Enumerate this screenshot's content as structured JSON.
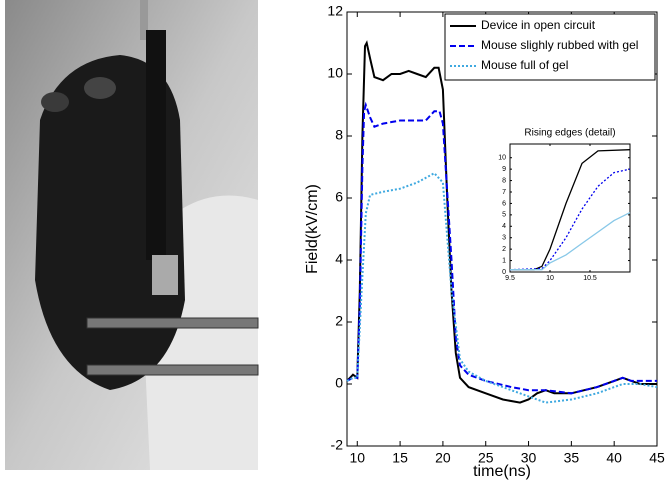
{
  "chart_data": [
    {
      "type": "line",
      "xlabel": "time(ns)",
      "ylabel": "Field(kV/cm)",
      "xlim": [
        8.8,
        45
      ],
      "xticks": [
        10,
        15,
        20,
        25,
        30,
        35,
        40,
        45
      ],
      "ylim": [
        -2,
        12
      ],
      "yticks": [
        -2,
        0,
        2,
        4,
        6,
        8,
        10,
        12
      ],
      "legend": "top-right",
      "series": [
        {
          "name": "Device in open circuit",
          "color": "#000000",
          "style": "solid",
          "x": [
            8.8,
            9.5,
            10,
            10.3,
            10.6,
            10.9,
            11.1,
            11.5,
            12,
            13,
            14,
            15,
            16,
            17,
            18,
            19,
            19.5,
            20,
            20.5,
            21,
            21.5,
            22,
            23,
            25,
            27,
            29,
            30,
            31,
            32,
            33,
            35,
            38,
            40,
            41,
            42,
            43,
            45
          ],
          "values": [
            0.1,
            0.3,
            0.2,
            3,
            8,
            10.9,
            11,
            10.5,
            9.9,
            9.8,
            10,
            10,
            10.1,
            10,
            9.9,
            10.2,
            10.2,
            9.5,
            6,
            3,
            1,
            0.2,
            -0.1,
            -0.3,
            -0.5,
            -0.6,
            -0.5,
            -0.3,
            -0.2,
            -0.3,
            -0.3,
            -0.1,
            0.1,
            0.2,
            0.1,
            0,
            0
          ]
        },
        {
          "name": "Mouse slighly rubbed with gel",
          "color": "#0000ee",
          "style": "dashed",
          "x": [
            8.8,
            9.5,
            10,
            10.3,
            10.6,
            10.8,
            11,
            11.5,
            12,
            13,
            15,
            18,
            19,
            19.6,
            20,
            21,
            21.5,
            22,
            23,
            25,
            28,
            30,
            32,
            35,
            38,
            41,
            42,
            45
          ],
          "values": [
            0.1,
            0.2,
            0.2,
            2.5,
            7,
            8.8,
            9,
            8.6,
            8.3,
            8.4,
            8.5,
            8.5,
            8.8,
            8.8,
            8.4,
            4,
            1.5,
            0.6,
            0.3,
            0.1,
            -0.1,
            -0.2,
            -0.2,
            -0.3,
            -0.1,
            0.2,
            0.1,
            0.1
          ]
        },
        {
          "name": "Mouse full of gel",
          "color": "#3fa9e0",
          "style": "dotted",
          "x": [
            8.8,
            9.5,
            10,
            10.5,
            11,
            11.5,
            13,
            15,
            17,
            19,
            20,
            21,
            22,
            23,
            25,
            28,
            30,
            32,
            35,
            38,
            41,
            43,
            45
          ],
          "values": [
            0.1,
            0.2,
            0.2,
            3,
            5.5,
            6.1,
            6.2,
            6.3,
            6.5,
            6.8,
            6.5,
            3,
            0.8,
            0.4,
            0.1,
            -0.2,
            -0.4,
            -0.6,
            -0.5,
            -0.3,
            0,
            0,
            -0.1
          ]
        }
      ]
    },
    {
      "type": "line",
      "title": "Rising edges (detail)",
      "xlim": [
        9.5,
        11
      ],
      "xticks": [
        9.5,
        10,
        10.5
      ],
      "ylim": [
        0,
        11.2
      ],
      "yticks": [
        0,
        1,
        2,
        3,
        4,
        5,
        6,
        7,
        8,
        9,
        10
      ],
      "series": [
        {
          "color": "#000000",
          "style": "solid",
          "x": [
            9.5,
            9.8,
            9.9,
            10,
            10.2,
            10.4,
            10.6,
            11
          ],
          "values": [
            0.2,
            0.2,
            0.5,
            2,
            6,
            9.5,
            10.6,
            10.7
          ]
        },
        {
          "color": "#0000ee",
          "style": "dotted",
          "x": [
            9.5,
            9.9,
            10,
            10.2,
            10.4,
            10.6,
            10.8,
            11
          ],
          "values": [
            0.2,
            0.3,
            1,
            3,
            5.5,
            7.5,
            8.7,
            9
          ]
        },
        {
          "color": "#88c8e8",
          "style": "solid",
          "x": [
            9.5,
            9.9,
            10,
            10.2,
            10.4,
            10.6,
            10.8,
            11
          ],
          "values": [
            0.2,
            0.2,
            0.8,
            1.5,
            2.5,
            3.5,
            4.5,
            5.2
          ]
        }
      ]
    }
  ]
}
